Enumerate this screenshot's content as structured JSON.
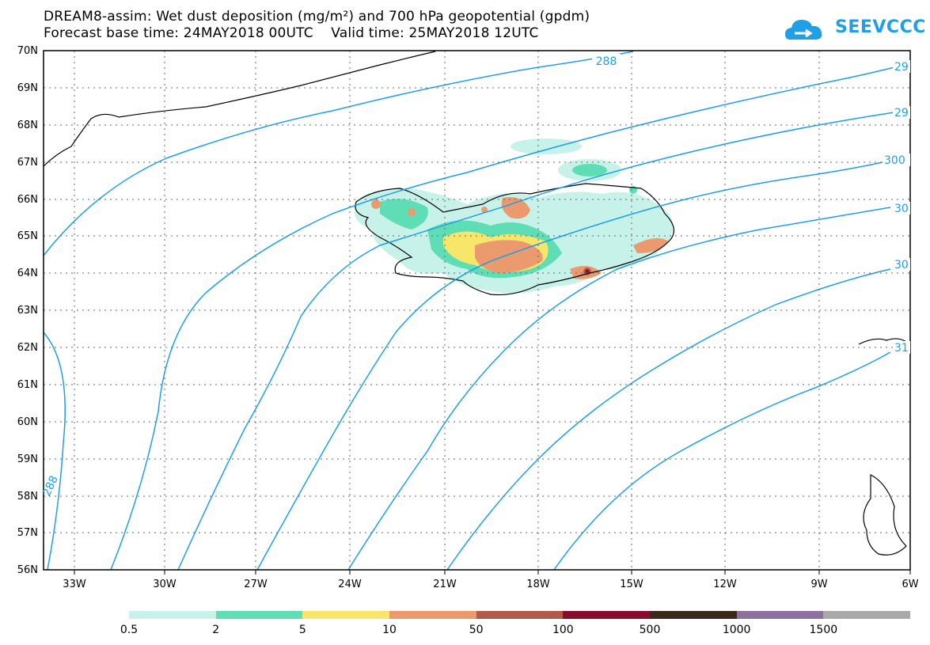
{
  "title": {
    "line1": "DREAM8-assim: Wet dust deposition (mg/m²) and 700 hPa geopotential (gpdm)",
    "line2": "Forecast base time: 24MAY2018 00UTC    Valid time: 25MAY2018 12UTC"
  },
  "logo": {
    "text": "SEEVCCC",
    "icon": "cloud-icon",
    "color": "#1e9fe6"
  },
  "map": {
    "lat_labels": [
      "70N",
      "69N",
      "68N",
      "67N",
      "66N",
      "65N",
      "64N",
      "63N",
      "62N",
      "61N",
      "60N",
      "59N",
      "58N",
      "57N",
      "56N"
    ],
    "lon_labels": [
      "33W",
      "30W",
      "27W",
      "24W",
      "21W",
      "18W",
      "15W",
      "12W",
      "9W",
      "6W"
    ],
    "contour_labels": [
      "288",
      "29",
      "29",
      "300",
      "30",
      "30",
      "31",
      "288"
    ],
    "contour_color": "#1e9fe6"
  },
  "colorbar": {
    "labels": [
      "0.5",
      "2",
      "5",
      "10",
      "50",
      "100",
      "500",
      "1000",
      "1500"
    ],
    "colors": [
      "#c6f2ea",
      "#5fddb5",
      "#f7e66a",
      "#eb9a6e",
      "#b25a48",
      "#8a0b2c",
      "#3a2a1c",
      "#8d6fa0",
      "#a9a9a9"
    ]
  }
}
